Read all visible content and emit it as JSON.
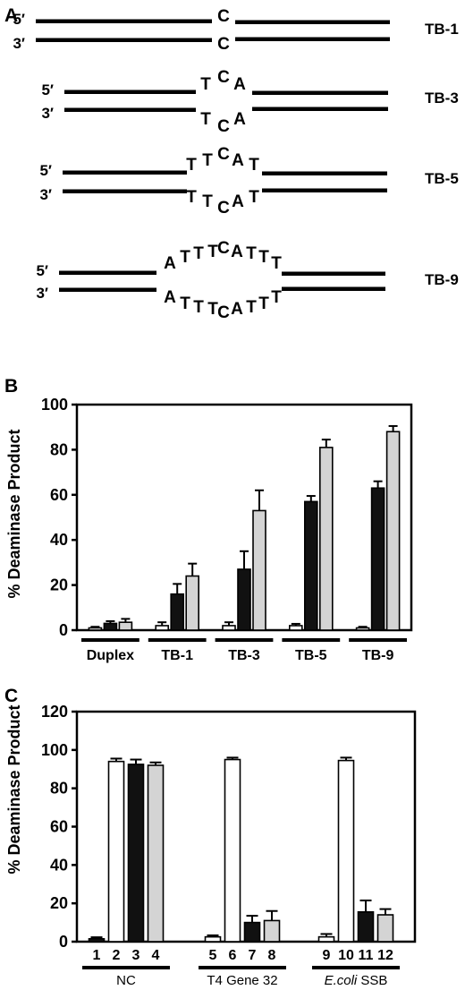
{
  "panel_a": {
    "letter": "A",
    "five_prime": "5′",
    "three_prime": "3′",
    "constructs": [
      {
        "name": "TB-1",
        "top_bases": [
          "C"
        ],
        "bottom_bases": [
          "C"
        ]
      },
      {
        "name": "TB-3",
        "top_bases": [
          "T",
          "C",
          "A"
        ],
        "bottom_bases": [
          "T",
          "C",
          "A"
        ]
      },
      {
        "name": "TB-5",
        "top_bases": [
          "T",
          "T",
          "C",
          "A",
          "T"
        ],
        "bottom_bases": [
          "T",
          "T",
          "C",
          "A",
          "T"
        ]
      },
      {
        "name": "TB-9",
        "top_bases": [
          "A",
          "T",
          "T",
          "T",
          "C",
          "A",
          "T",
          "T",
          "T"
        ],
        "bottom_bases": [
          "A",
          "T",
          "T",
          "T",
          "C",
          "A",
          "T",
          "T",
          "T"
        ]
      }
    ]
  },
  "chart_data": [
    {
      "panel": "B",
      "type": "bar",
      "ylabel": "% Deaminase Product",
      "ylim": [
        0,
        100
      ],
      "yticks": [
        0,
        20,
        40,
        60,
        80,
        100
      ],
      "categories": [
        "Duplex",
        "TB-1",
        "TB-3",
        "TB-5",
        "TB-9"
      ],
      "series": [
        {
          "color": "#ffffff",
          "values": [
            1,
            2,
            2,
            2,
            1
          ],
          "errors": [
            0.5,
            1.5,
            1.5,
            0.8,
            0.5
          ]
        },
        {
          "color": "#111111",
          "values": [
            3,
            16,
            27,
            57,
            63
          ],
          "errors": [
            1,
            4.5,
            8,
            2.5,
            3
          ]
        },
        {
          "color": "#d4d4d4",
          "values": [
            3.5,
            24,
            53,
            81,
            88
          ],
          "errors": [
            1.5,
            5.5,
            9,
            3.5,
            2.5
          ]
        }
      ]
    },
    {
      "panel": "C",
      "type": "bar",
      "ylabel": "% Deaminase Product",
      "ylim": [
        0,
        120
      ],
      "yticks": [
        0,
        20,
        40,
        60,
        80,
        100,
        120
      ],
      "lanes": [
        "1",
        "2",
        "3",
        "4",
        "5",
        "6",
        "7",
        "8",
        "9",
        "10",
        "11",
        "12"
      ],
      "values": [
        1.5,
        94,
        92.5,
        92,
        2.5,
        95,
        10,
        11,
        2.5,
        94.5,
        15.5,
        14
      ],
      "errors": [
        0.8,
        1.5,
        2.5,
        1.5,
        0.8,
        1,
        3.5,
        5,
        1.5,
        1.5,
        6,
        3
      ],
      "colors": [
        "#111111",
        "#ffffff",
        "#111111",
        "#d4d4d4",
        "#ffffff",
        "#ffffff",
        "#111111",
        "#d4d4d4",
        "#ffffff",
        "#ffffff",
        "#111111",
        "#d4d4d4"
      ],
      "groups": [
        {
          "label": "NC",
          "italic_prefix": "",
          "lanes": [
            1,
            2,
            3,
            4
          ]
        },
        {
          "label": "T4 Gene 32",
          "italic_prefix": "",
          "lanes": [
            5,
            6,
            7,
            8
          ]
        },
        {
          "label": " SSB",
          "italic_prefix": "E.coli",
          "lanes": [
            9,
            10,
            11,
            12
          ]
        }
      ]
    }
  ],
  "panel_b_letter": "B",
  "panel_c_letter": "C"
}
